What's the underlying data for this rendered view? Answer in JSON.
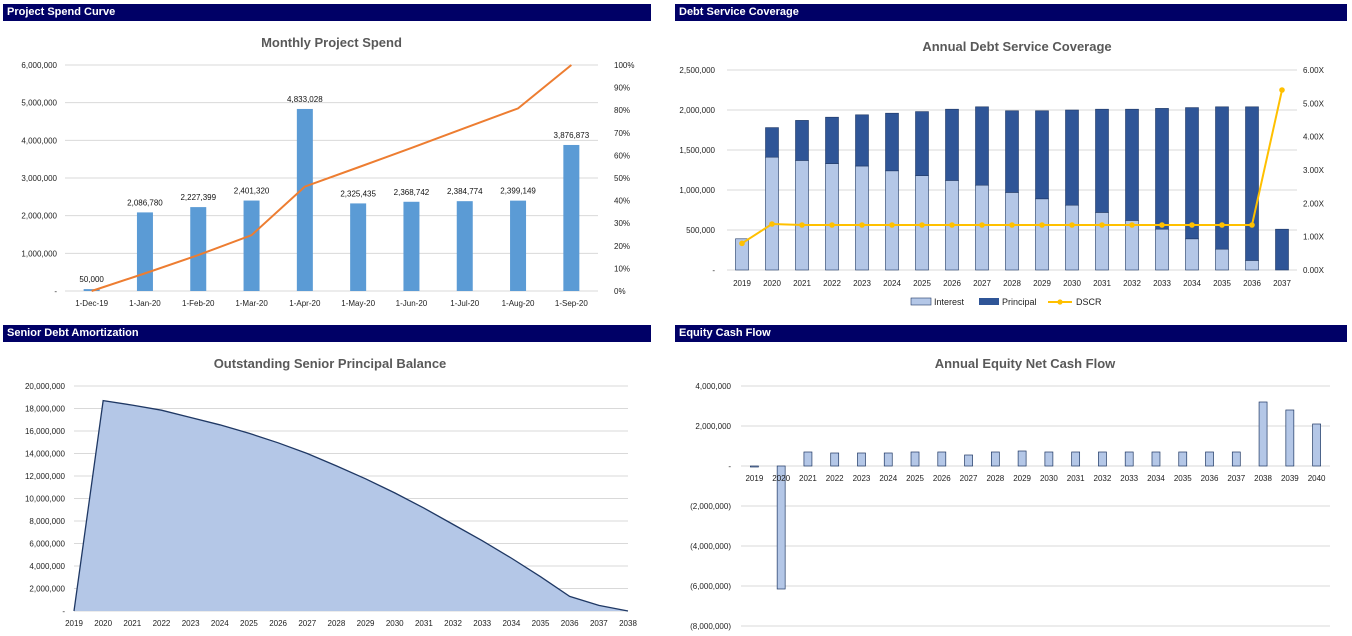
{
  "colors": {
    "header_bg": "#000066",
    "bar_blue": "#5B9BD5",
    "line_orange": "#ED7D31",
    "interest": "#B4C7E7",
    "principal": "#2F5597",
    "dscr": "#FFC000",
    "area_fill": "#B4C7E7",
    "area_line": "#1F3864",
    "equity_bar": "#B4C7E7"
  },
  "panels": {
    "spend": {
      "header": "Project Spend Curve"
    },
    "dscr": {
      "header": "Debt Service Coverage"
    },
    "amort": {
      "header": "Senior Debt Amortization"
    },
    "equity": {
      "header": "Equity Cash Flow"
    }
  },
  "chart_data": [
    {
      "id": "spend",
      "type": "bar",
      "title": "Monthly Project Spend",
      "categories": [
        "1-Dec-19",
        "1-Jan-20",
        "1-Feb-20",
        "1-Mar-20",
        "1-Apr-20",
        "1-May-20",
        "1-Jun-20",
        "1-Jul-20",
        "1-Aug-20",
        "1-Sep-20"
      ],
      "series": [
        {
          "values": [
            50000,
            2086780,
            2227399,
            2401320,
            4833028,
            2325435,
            2368742,
            2384774,
            2399149,
            3876873
          ]
        },
        {
          "type": "line",
          "axis": "secondary",
          "values": [
            0.0,
            0.078,
            0.159,
            0.247,
            0.462,
            0.547,
            0.633,
            0.721,
            0.808,
            1.0
          ]
        }
      ],
      "data_labels": [
        "50,000",
        "2,086,780",
        "2,227,399",
        "2,401,320",
        "4,833,028",
        "2,325,435",
        "2,368,742",
        "2,384,774",
        "2,399,149",
        "3,876,873"
      ],
      "ylim": [
        0,
        6000000
      ],
      "yticks": [
        "-",
        "1,000,000",
        "2,000,000",
        "3,000,000",
        "4,000,000",
        "5,000,000",
        "6,000,000"
      ],
      "y2lim": [
        0,
        1
      ],
      "y2ticks": [
        "0%",
        "10%",
        "20%",
        "30%",
        "40%",
        "50%",
        "60%",
        "70%",
        "80%",
        "90%",
        "100%"
      ],
      "grid": true
    },
    {
      "id": "dscr",
      "type": "bar",
      "title": "Annual Debt Service Coverage",
      "categories": [
        "2019",
        "2020",
        "2021",
        "2022",
        "2023",
        "2024",
        "2025",
        "2026",
        "2027",
        "2028",
        "2029",
        "2030",
        "2031",
        "2032",
        "2033",
        "2034",
        "2035",
        "2036",
        "2037"
      ],
      "series": [
        {
          "name": "Interest",
          "values": [
            390000,
            1410000,
            1370000,
            1330000,
            1300000,
            1240000,
            1180000,
            1120000,
            1060000,
            970000,
            890000,
            810000,
            720000,
            620000,
            510000,
            390000,
            260000,
            120000,
            0
          ]
        },
        {
          "name": "Principal",
          "values": [
            0,
            370000,
            500000,
            580000,
            640000,
            720000,
            800000,
            890000,
            980000,
            1020000,
            1100000,
            1190000,
            1290000,
            1390000,
            1510000,
            1640000,
            1780000,
            1920000,
            510000
          ]
        },
        {
          "name": "DSCR",
          "type": "line",
          "axis": "secondary",
          "values": [
            0.8,
            1.38,
            1.35,
            1.35,
            1.35,
            1.35,
            1.35,
            1.35,
            1.35,
            1.35,
            1.35,
            1.35,
            1.35,
            1.35,
            1.35,
            1.35,
            1.35,
            1.35,
            5.4
          ]
        }
      ],
      "ylim": [
        0,
        2500000
      ],
      "yticks": [
        "-",
        "500,000",
        "1,000,000",
        "1,500,000",
        "2,000,000",
        "2,500,000"
      ],
      "y2lim": [
        0,
        6
      ],
      "y2ticks": [
        "0.00X",
        "1.00X",
        "2.00X",
        "3.00X",
        "4.00X",
        "5.00X",
        "6.00X"
      ],
      "legend": [
        "Interest",
        "Principal",
        "DSCR"
      ],
      "legend_position": "bottom",
      "grid": true
    },
    {
      "id": "amort",
      "type": "area",
      "title": "Outstanding Senior Principal Balance",
      "categories": [
        "2019",
        "2020",
        "2021",
        "2022",
        "2023",
        "2024",
        "2025",
        "2026",
        "2027",
        "2028",
        "2029",
        "2030",
        "2031",
        "2032",
        "2033",
        "2034",
        "2035",
        "2036",
        "2037",
        "2038"
      ],
      "values": [
        0,
        18700000,
        18300000,
        17850000,
        17200000,
        16550000,
        15800000,
        14950000,
        14000000,
        12900000,
        11750000,
        10500000,
        9150000,
        7700000,
        6250000,
        4700000,
        3050000,
        1300000,
        500000,
        0
      ],
      "ylim": [
        0,
        20000000
      ],
      "yticks": [
        "-",
        "2,000,000",
        "4,000,000",
        "6,000,000",
        "8,000,000",
        "10,000,000",
        "12,000,000",
        "14,000,000",
        "16,000,000",
        "18,000,000",
        "20,000,000"
      ],
      "grid": true
    },
    {
      "id": "equity",
      "type": "bar",
      "title": "Annual Equity Net Cash Flow",
      "categories": [
        "2019",
        "2020",
        "2021",
        "2022",
        "2023",
        "2024",
        "2025",
        "2026",
        "2027",
        "2028",
        "2029",
        "2030",
        "2031",
        "2032",
        "2033",
        "2034",
        "2035",
        "2036",
        "2037",
        "2038",
        "2039",
        "2040"
      ],
      "values": [
        -50000,
        -6150000,
        700000,
        650000,
        650000,
        650000,
        700000,
        700000,
        550000,
        700000,
        750000,
        700000,
        700000,
        700000,
        700000,
        700000,
        700000,
        700000,
        700000,
        3200000,
        2800000,
        2100000
      ],
      "ylim": [
        -8000000,
        4000000
      ],
      "yticks": [
        "(8,000,000)",
        "(6,000,000)",
        "(4,000,000)",
        "(2,000,000)",
        "-",
        "2,000,000",
        "4,000,000"
      ],
      "grid": true
    }
  ]
}
